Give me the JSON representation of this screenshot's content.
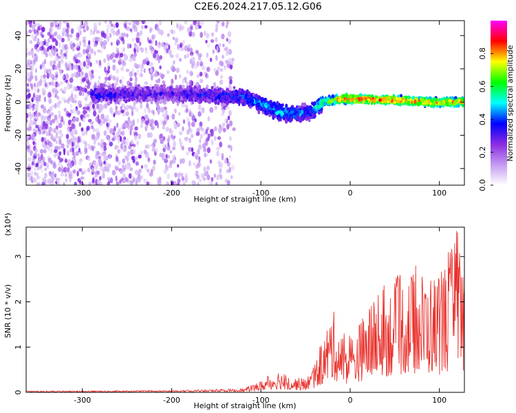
{
  "title": "C2E6.2024.217.05.12.G06",
  "chart_data": [
    {
      "type": "heatmap",
      "xlabel": "Height of straight line (km)",
      "ylabel": "Frequency (Hz)",
      "xlim": [
        -363,
        128
      ],
      "ylim": [
        -50,
        49
      ],
      "xticks": [
        -300,
        -200,
        -100,
        0,
        100
      ],
      "yticks": [
        -40,
        -20,
        0,
        20,
        40
      ],
      "colorbar": {
        "label": "Normalized spectral amplitude",
        "range": [
          0,
          1
        ],
        "ticks": [
          "0.0",
          "0.2",
          "0.4",
          "0.6",
          "0.8"
        ],
        "colors": [
          "#ffffff",
          "#c39bf0",
          "#8a2be2",
          "#0000ff",
          "#00ffff",
          "#00ff00",
          "#ffff00",
          "#ff0000",
          "#ff00ff"
        ]
      },
      "ridge": {
        "x": [
          -290,
          -250,
          -200,
          -150,
          -120,
          -100,
          -80,
          -60,
          -45,
          -30,
          -10,
          0,
          30,
          60,
          90,
          128
        ],
        "y": [
          4,
          5,
          5,
          4,
          3,
          -1,
          -6,
          -7,
          -6,
          0,
          2,
          2,
          1.5,
          1,
          0,
          0
        ],
        "amplitude": [
          0.35,
          0.3,
          0.3,
          0.35,
          0.4,
          0.45,
          0.5,
          0.45,
          0.4,
          0.6,
          0.85,
          0.9,
          0.85,
          0.85,
          0.8,
          0.8
        ]
      }
    },
    {
      "type": "line",
      "xlabel": "Height of straight line (km)",
      "ylabel": "SNR (10 * v/v)",
      "yscale_label": "(x10⁴)",
      "xlim": [
        -363,
        128
      ],
      "ylim": [
        0,
        3.65
      ],
      "xticks": [
        -300,
        -200,
        -100,
        0,
        100
      ],
      "yticks": [
        0,
        1,
        2,
        3
      ],
      "color": "#e8312c",
      "envelope": {
        "x": [
          -363,
          -200,
          -120,
          -100,
          -80,
          -70,
          -50,
          -40,
          -30,
          -20,
          -10,
          0,
          20,
          40,
          60,
          80,
          100,
          110,
          120,
          128
        ],
        "y": [
          0.03,
          0.04,
          0.08,
          0.25,
          0.5,
          0.35,
          0.3,
          0.6,
          1.2,
          1.9,
          1.3,
          1.2,
          1.9,
          2.3,
          2.6,
          2.7,
          2.6,
          3.0,
          3.6,
          2.8
        ]
      }
    }
  ]
}
